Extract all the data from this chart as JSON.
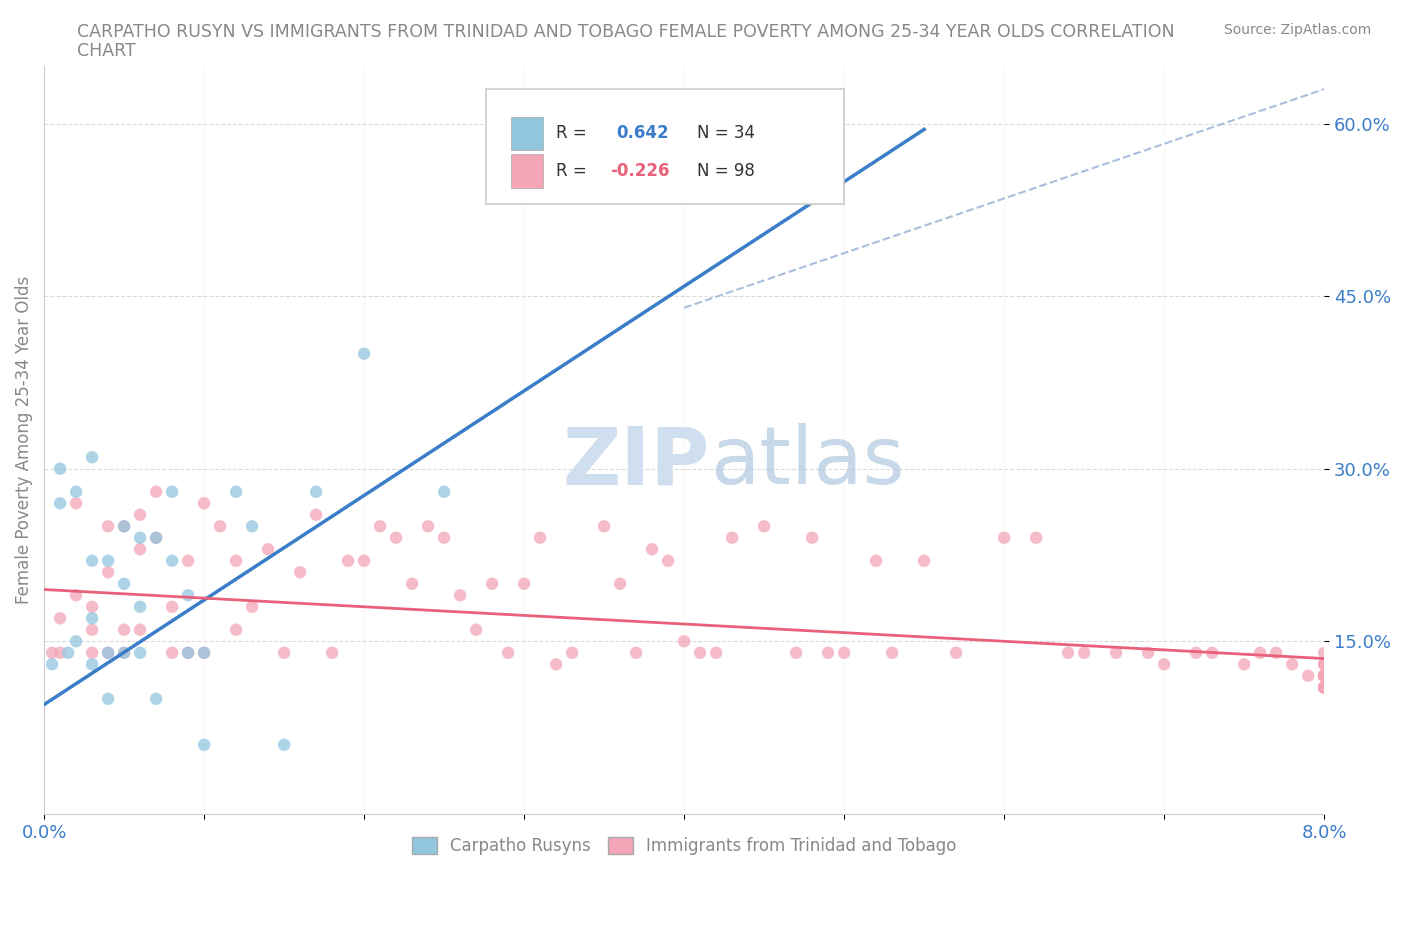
{
  "title_line1": "CARPATHO RUSYN VS IMMIGRANTS FROM TRINIDAD AND TOBAGO FEMALE POVERTY AMONG 25-34 YEAR OLDS CORRELATION",
  "title_line2": "CHART",
  "source": "Source: ZipAtlas.com",
  "ylabel": "Female Poverty Among 25-34 Year Olds",
  "xlim": [
    0.0,
    0.08
  ],
  "ylim": [
    0.0,
    0.65
  ],
  "yticks": [
    0.15,
    0.3,
    0.45,
    0.6
  ],
  "ytick_labels": [
    "15.0%",
    "30.0%",
    "45.0%",
    "60.0%"
  ],
  "legend_r_blue": "R =  0.642",
  "legend_n_blue": "N = 34",
  "legend_r_pink": "R = -0.226",
  "legend_n_pink": "N = 98",
  "blue_color": "#92c5de",
  "pink_color": "#f4a5b8",
  "blue_line_color": "#3a7dc9",
  "pink_line_color": "#e8607a",
  "ref_line_color": "#a0b8d8",
  "watermark_color": "#d0dff0",
  "blue_line_x0": 0.0,
  "blue_line_y0": 0.095,
  "blue_line_x1": 0.055,
  "blue_line_y1": 0.595,
  "pink_line_x0": 0.0,
  "pink_line_y0": 0.195,
  "pink_line_x1": 0.08,
  "pink_line_y1": 0.135,
  "ref_line_x0": 0.04,
  "ref_line_y0": 0.44,
  "ref_line_x1": 0.08,
  "ref_line_y1": 0.63,
  "blue_scatter_x": [
    0.0005,
    0.001,
    0.001,
    0.0015,
    0.002,
    0.002,
    0.003,
    0.003,
    0.003,
    0.003,
    0.004,
    0.004,
    0.004,
    0.005,
    0.005,
    0.005,
    0.006,
    0.006,
    0.006,
    0.007,
    0.007,
    0.008,
    0.008,
    0.009,
    0.009,
    0.01,
    0.01,
    0.012,
    0.013,
    0.015,
    0.017,
    0.02,
    0.025,
    0.041
  ],
  "blue_scatter_y": [
    0.13,
    0.3,
    0.27,
    0.14,
    0.15,
    0.28,
    0.17,
    0.13,
    0.31,
    0.22,
    0.14,
    0.22,
    0.1,
    0.14,
    0.25,
    0.2,
    0.14,
    0.24,
    0.18,
    0.24,
    0.1,
    0.28,
    0.22,
    0.19,
    0.14,
    0.06,
    0.14,
    0.28,
    0.25,
    0.06,
    0.28,
    0.4,
    0.28,
    0.55
  ],
  "pink_scatter_x": [
    0.0005,
    0.001,
    0.001,
    0.002,
    0.002,
    0.003,
    0.003,
    0.003,
    0.004,
    0.004,
    0.004,
    0.005,
    0.005,
    0.005,
    0.006,
    0.006,
    0.006,
    0.007,
    0.007,
    0.008,
    0.008,
    0.009,
    0.009,
    0.01,
    0.01,
    0.011,
    0.012,
    0.012,
    0.013,
    0.014,
    0.015,
    0.016,
    0.017,
    0.018,
    0.019,
    0.02,
    0.021,
    0.022,
    0.023,
    0.024,
    0.025,
    0.026,
    0.027,
    0.028,
    0.029,
    0.03,
    0.031,
    0.032,
    0.033,
    0.035,
    0.036,
    0.037,
    0.038,
    0.039,
    0.04,
    0.041,
    0.042,
    0.043,
    0.045,
    0.047,
    0.048,
    0.049,
    0.05,
    0.052,
    0.053,
    0.055,
    0.057,
    0.06,
    0.062,
    0.064,
    0.065,
    0.067,
    0.069,
    0.07,
    0.072,
    0.073,
    0.075,
    0.076,
    0.077,
    0.078,
    0.079,
    0.08,
    0.08,
    0.08,
    0.08,
    0.08,
    0.08,
    0.08,
    0.08,
    0.08,
    0.08,
    0.08,
    0.08,
    0.08,
    0.08,
    0.08,
    0.08,
    0.08
  ],
  "pink_scatter_y": [
    0.14,
    0.14,
    0.17,
    0.19,
    0.27,
    0.14,
    0.16,
    0.18,
    0.14,
    0.21,
    0.25,
    0.14,
    0.16,
    0.25,
    0.16,
    0.23,
    0.26,
    0.24,
    0.28,
    0.14,
    0.18,
    0.14,
    0.22,
    0.14,
    0.27,
    0.25,
    0.16,
    0.22,
    0.18,
    0.23,
    0.14,
    0.21,
    0.26,
    0.14,
    0.22,
    0.22,
    0.25,
    0.24,
    0.2,
    0.25,
    0.24,
    0.19,
    0.16,
    0.2,
    0.14,
    0.2,
    0.24,
    0.13,
    0.14,
    0.25,
    0.2,
    0.14,
    0.23,
    0.22,
    0.15,
    0.14,
    0.14,
    0.24,
    0.25,
    0.14,
    0.24,
    0.14,
    0.14,
    0.22,
    0.14,
    0.22,
    0.14,
    0.24,
    0.24,
    0.14,
    0.14,
    0.14,
    0.14,
    0.13,
    0.14,
    0.14,
    0.13,
    0.14,
    0.14,
    0.13,
    0.12,
    0.13,
    0.14,
    0.12,
    0.13,
    0.12,
    0.11,
    0.12,
    0.11,
    0.12,
    0.11,
    0.12,
    0.11,
    0.11,
    0.12,
    0.11,
    0.11,
    0.12
  ]
}
